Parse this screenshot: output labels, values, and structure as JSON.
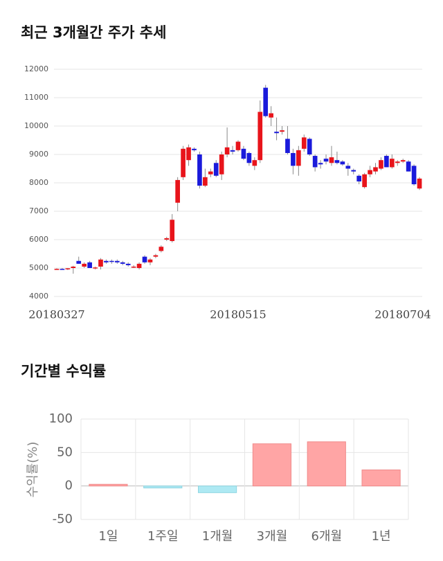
{
  "chart_data": [
    {
      "type": "candlestick",
      "title": "최근 3개월간 주가 추세",
      "categories": [
        "20180327",
        null,
        null,
        null,
        null,
        null,
        null,
        null,
        null,
        null,
        null,
        null,
        null,
        null,
        null,
        null,
        null,
        null,
        null,
        null,
        null,
        null,
        null,
        null,
        null,
        null,
        null,
        null,
        null,
        null,
        null,
        null,
        null,
        "20180515",
        null,
        null,
        null,
        null,
        null,
        null,
        null,
        null,
        null,
        null,
        null,
        null,
        null,
        null,
        null,
        null,
        null,
        null,
        null,
        null,
        null,
        null,
        null,
        null,
        null,
        null,
        null,
        null,
        null,
        null,
        null,
        null,
        "20180704"
      ],
      "open": [
        4960,
        4970,
        4970,
        5000,
        5250,
        5050,
        5200,
        5000,
        5050,
        5250,
        5250,
        5250,
        5200,
        5150,
        5050,
        5000,
        5400,
        5200,
        5400,
        5600,
        6000,
        5950,
        7300,
        8200,
        8800,
        9200,
        9000,
        7900,
        8300,
        8700,
        8300,
        9000,
        9150,
        9150,
        9200,
        9050,
        8600,
        8800,
        11350,
        10300,
        9800,
        9800,
        9550,
        9050,
        8600,
        9200,
        9550,
        8950,
        8700,
        8850,
        8700,
        8800,
        8750,
        8600,
        8450,
        8250,
        7850,
        8300,
        8400,
        8500,
        8950,
        8550,
        8700,
        8750,
        8750,
        8600,
        7800
      ],
      "high": [
        4990,
        5000,
        5000,
        5080,
        5400,
        5200,
        5250,
        5050,
        5350,
        5300,
        5300,
        5300,
        5250,
        5200,
        5100,
        5200,
        5450,
        5350,
        5500,
        5800,
        6100,
        6900,
        8200,
        9300,
        9350,
        9250,
        9100,
        8500,
        8500,
        8800,
        9100,
        9950,
        9300,
        9500,
        9300,
        9100,
        8900,
        10900,
        11450,
        10700,
        10300,
        10000,
        10000,
        9200,
        9300,
        9700,
        9600,
        9000,
        8800,
        9000,
        9300,
        9100,
        8800,
        8700,
        8500,
        8300,
        8350,
        8600,
        8700,
        8900,
        9000,
        9000,
        8800,
        8850,
        8800,
        8650,
        8200
      ],
      "low": [
        4940,
        4950,
        4930,
        4800,
        5150,
        5000,
        5000,
        4950,
        4950,
        5150,
        5150,
        5150,
        5100,
        5050,
        5000,
        4950,
        5150,
        5100,
        5350,
        5550,
        5950,
        5900,
        7000,
        8100,
        8600,
        9100,
        7800,
        7850,
        8200,
        8200,
        8100,
        8900,
        9000,
        9100,
        8800,
        8600,
        8450,
        8700,
        10300,
        10000,
        9500,
        9700,
        9000,
        8300,
        8250,
        9100,
        8950,
        8400,
        8500,
        8650,
        8600,
        8650,
        8600,
        8250,
        8300,
        7950,
        7800,
        8200,
        8300,
        8450,
        8550,
        8500,
        8600,
        8700,
        8400,
        7900,
        7750
      ],
      "close": [
        4970,
        4960,
        4990,
        5050,
        5150,
        5150,
        5000,
        5020,
        5300,
        5200,
        5220,
        5200,
        5150,
        5100,
        5050,
        5150,
        5200,
        5300,
        5450,
        5750,
        6050,
        6700,
        8100,
        9200,
        9250,
        9150,
        7900,
        8200,
        8400,
        8250,
        9000,
        9250,
        9100,
        9450,
        8850,
        8700,
        8800,
        10500,
        10350,
        10450,
        9750,
        9850,
        9050,
        8600,
        9150,
        9600,
        9000,
        8550,
        8650,
        8750,
        8900,
        8700,
        8650,
        8500,
        8400,
        8050,
        8300,
        8450,
        8550,
        8800,
        8550,
        8850,
        8750,
        8800,
        8400,
        7950,
        8150
      ],
      "up_color": "#e8141b",
      "down_color": "#1a1adb",
      "ylim": [
        4000,
        12000
      ],
      "yticks": [
        4000,
        5000,
        6000,
        7000,
        8000,
        9000,
        10000,
        11000,
        12000
      ],
      "grid": true
    },
    {
      "type": "bar",
      "title": "기간별 수익률",
      "y_label": "수익률(%)",
      "categories": [
        "1일",
        "1주일",
        "1개월",
        "3개월",
        "6개월",
        "1년"
      ],
      "values": [
        2.5,
        -3,
        -10,
        63,
        66,
        24
      ],
      "positive_color": "#ffa5a5",
      "negative_color": "#aee9f3",
      "ylim": [
        -50,
        100
      ],
      "yticks": [
        -50,
        0,
        50,
        100
      ],
      "grid": true
    }
  ]
}
